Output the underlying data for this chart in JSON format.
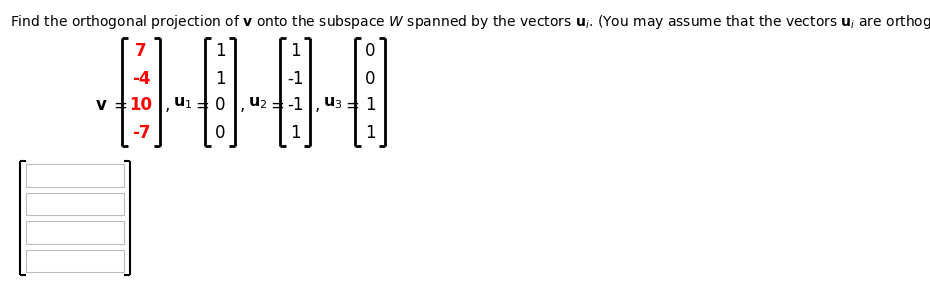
{
  "title": "Find the orthogonal projection of $\\mathbf{v}$ onto the subspace $\\mathit{W}$ spanned by the vectors $\\mathbf{u}_i$. (You may assume that the vectors $\\mathbf{u}_i$ are orthogonal.)",
  "v_values": [
    "7",
    "-4",
    "10",
    "-7"
  ],
  "u1_values": [
    "1",
    "1",
    "0",
    "0"
  ],
  "u2_values": [
    "1",
    "-1",
    "-1",
    "1"
  ],
  "u3_values": [
    "0",
    "0",
    "1",
    "1"
  ],
  "v_color": "#ff0000",
  "u_color": "#000000",
  "background_color": "#ffffff",
  "answer_rows": 4
}
